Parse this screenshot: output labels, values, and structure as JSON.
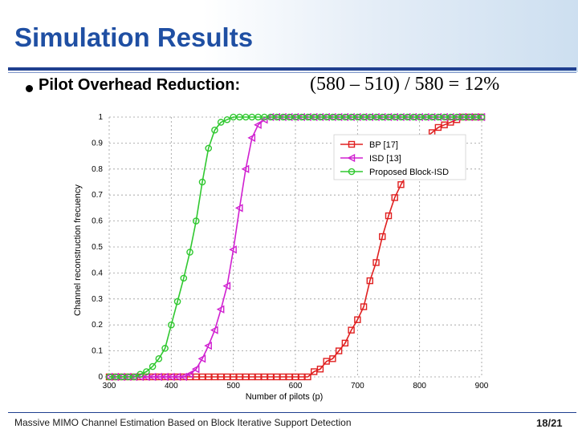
{
  "slide": {
    "title": "Simulation Results",
    "bullet": "Pilot Overhead Reduction:",
    "formula": "(580 – 510) / 580 = 12%",
    "footer": "Massive MIMO Channel Estimation Based on Block Iterative Support Detection",
    "page": "18/21"
  },
  "colors": {
    "title": "#1f4fa3",
    "rule": "#1f3f8f",
    "bp": "#e02020",
    "isd": "#d020d0",
    "block_isd": "#30c830"
  },
  "chart_data": {
    "type": "line",
    "xlabel": "Number of pilots (p)",
    "ylabel": "Channel reconstruction frecuency",
    "xlim": [
      300,
      900
    ],
    "ylim": [
      0,
      1
    ],
    "xticks": [
      300,
      400,
      500,
      600,
      700,
      800,
      900
    ],
    "yticks": [
      0,
      0.1,
      0.2,
      0.3,
      0.4,
      0.5,
      0.6,
      0.7,
      0.8,
      0.9,
      1
    ],
    "ytick_labels": [
      "0",
      "0.1",
      "0.2",
      "0.3",
      "0.4",
      "0.5",
      "0.6",
      "0.7",
      "0.8",
      "0.9",
      "1"
    ],
    "grid": true,
    "legend_position": "top-right",
    "series": [
      {
        "name": "BP [17]",
        "color": "#e02020",
        "marker": "square",
        "x": [
          300,
          310,
          320,
          330,
          340,
          350,
          360,
          370,
          380,
          390,
          400,
          410,
          420,
          430,
          440,
          450,
          460,
          470,
          480,
          490,
          500,
          510,
          520,
          530,
          540,
          550,
          560,
          570,
          580,
          590,
          600,
          610,
          620,
          630,
          640,
          650,
          660,
          670,
          680,
          690,
          700,
          710,
          720,
          730,
          740,
          750,
          760,
          770,
          780,
          790,
          800,
          810,
          820,
          830,
          840,
          850,
          860,
          870,
          880,
          890,
          900
        ],
        "y": [
          0,
          0,
          0,
          0,
          0,
          0,
          0,
          0,
          0,
          0,
          0,
          0,
          0,
          0,
          0,
          0,
          0,
          0,
          0,
          0,
          0,
          0,
          0,
          0,
          0,
          0,
          0,
          0,
          0,
          0,
          0,
          0,
          0,
          0.02,
          0.03,
          0.06,
          0.07,
          0.1,
          0.13,
          0.18,
          0.22,
          0.27,
          0.37,
          0.44,
          0.54,
          0.62,
          0.69,
          0.74,
          0.78,
          0.82,
          0.88,
          0.92,
          0.94,
          0.96,
          0.97,
          0.98,
          0.99,
          1,
          1,
          1,
          1
        ]
      },
      {
        "name": "ISD [13]",
        "color": "#d020d0",
        "marker": "triangle-left",
        "x": [
          300,
          310,
          320,
          330,
          340,
          350,
          360,
          370,
          380,
          390,
          400,
          410,
          420,
          430,
          440,
          450,
          460,
          470,
          480,
          490,
          500,
          510,
          520,
          530,
          540,
          550,
          560,
          570,
          580,
          590,
          600,
          610,
          620,
          630,
          640,
          650,
          660,
          670,
          680,
          690,
          700,
          710,
          720,
          730,
          740,
          750,
          760,
          770,
          780,
          790,
          800,
          810,
          820,
          830,
          840,
          850,
          860,
          870,
          880,
          890,
          900
        ],
        "y": [
          0,
          0,
          0,
          0,
          0,
          0,
          0,
          0,
          0,
          0,
          0,
          0,
          0,
          0.01,
          0.03,
          0.07,
          0.12,
          0.18,
          0.26,
          0.35,
          0.49,
          0.65,
          0.8,
          0.92,
          0.97,
          0.99,
          1,
          1,
          1,
          1,
          1,
          1,
          1,
          1,
          1,
          1,
          1,
          1,
          1,
          1,
          1,
          1,
          1,
          1,
          1,
          1,
          1,
          1,
          1,
          1,
          1,
          1,
          1,
          1,
          1,
          1,
          1,
          1,
          1,
          1,
          1
        ]
      },
      {
        "name": "Proposed Block-ISD",
        "color": "#30c830",
        "marker": "circle",
        "x": [
          300,
          310,
          320,
          330,
          340,
          350,
          360,
          370,
          380,
          390,
          400,
          410,
          420,
          430,
          440,
          450,
          460,
          470,
          480,
          490,
          500,
          510,
          520,
          530,
          540,
          550,
          560,
          570,
          580,
          590,
          600,
          610,
          620,
          630,
          640,
          650,
          660,
          670,
          680,
          690,
          700,
          710,
          720,
          730,
          740,
          750,
          760,
          770,
          780,
          790,
          800,
          810,
          820,
          830,
          840,
          850,
          860,
          870,
          880,
          890,
          900
        ],
        "y": [
          0,
          0,
          0,
          0,
          0,
          0.01,
          0.02,
          0.04,
          0.07,
          0.11,
          0.2,
          0.29,
          0.38,
          0.48,
          0.6,
          0.75,
          0.88,
          0.95,
          0.98,
          0.99,
          1,
          1,
          1,
          1,
          1,
          1,
          1,
          1,
          1,
          1,
          1,
          1,
          1,
          1,
          1,
          1,
          1,
          1,
          1,
          1,
          1,
          1,
          1,
          1,
          1,
          1,
          1,
          1,
          1,
          1,
          1,
          1,
          1,
          1,
          1,
          1,
          1,
          1,
          1,
          1,
          1
        ]
      }
    ]
  }
}
